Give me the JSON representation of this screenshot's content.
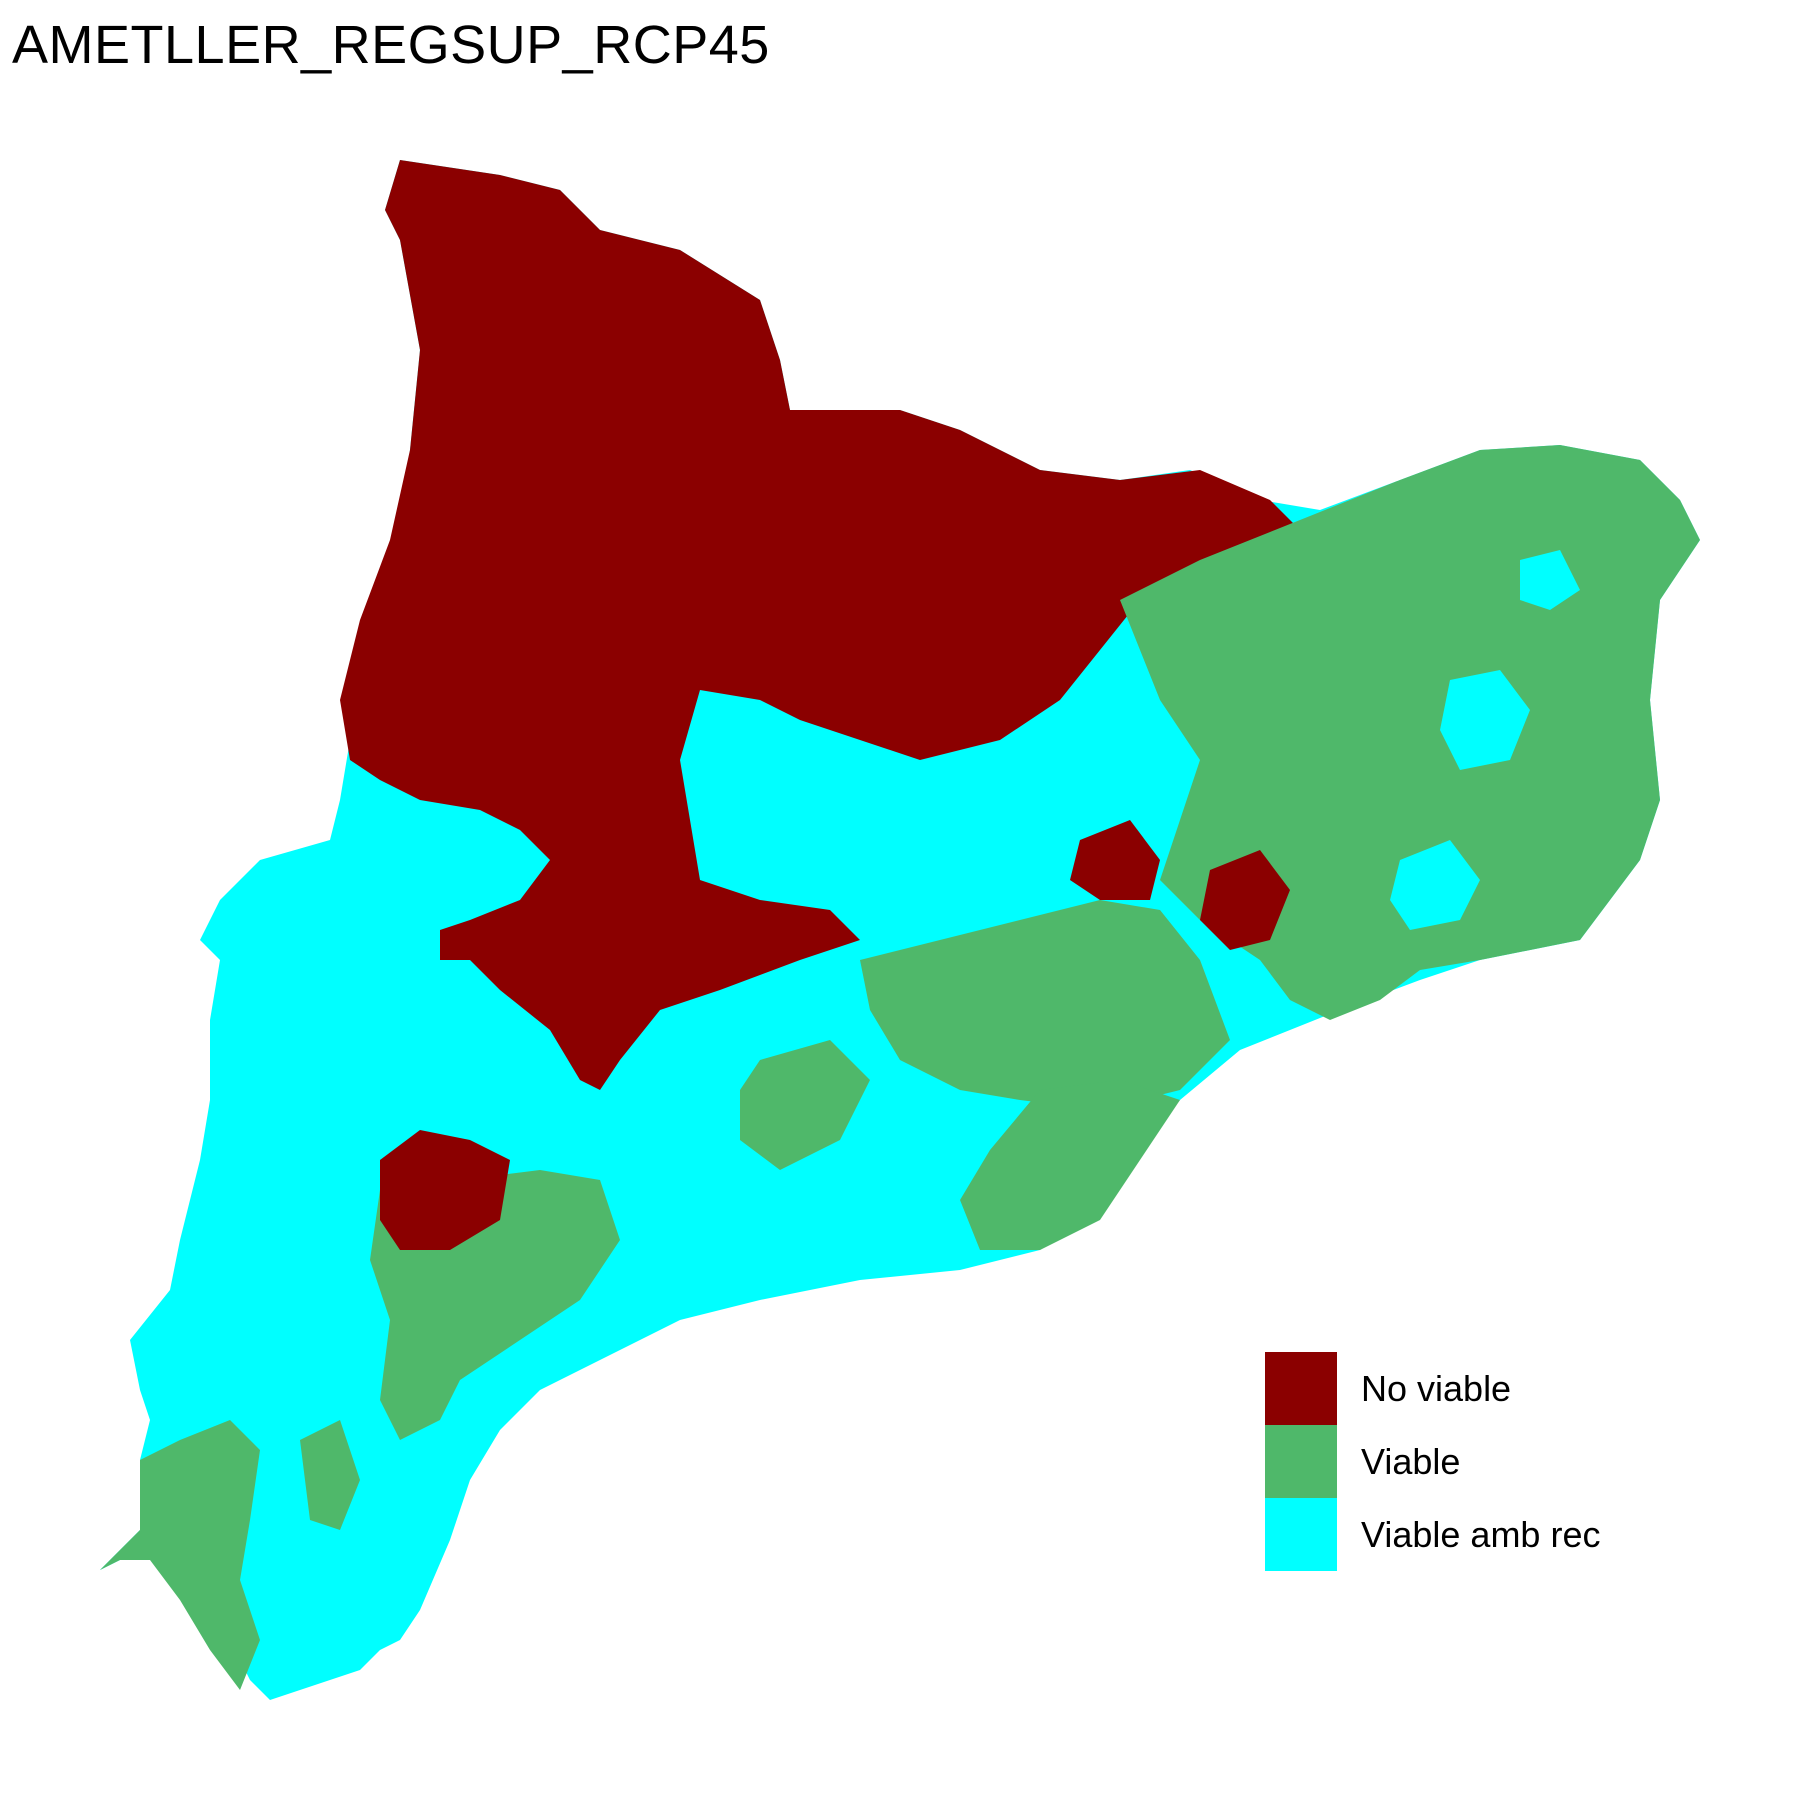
{
  "title": "AMETLLER_REGSUP_RCP45",
  "colors": {
    "no_viable": "#8b0000",
    "viable": "#4fb86a",
    "viable_amb_rec": "#00ffff"
  },
  "legend": {
    "items": [
      {
        "label": "No viable",
        "color": "#8b0000"
      },
      {
        "label": "Viable",
        "color": "#4fb86a"
      },
      {
        "label": "Viable amb rec",
        "color": "#00ffff"
      }
    ]
  }
}
